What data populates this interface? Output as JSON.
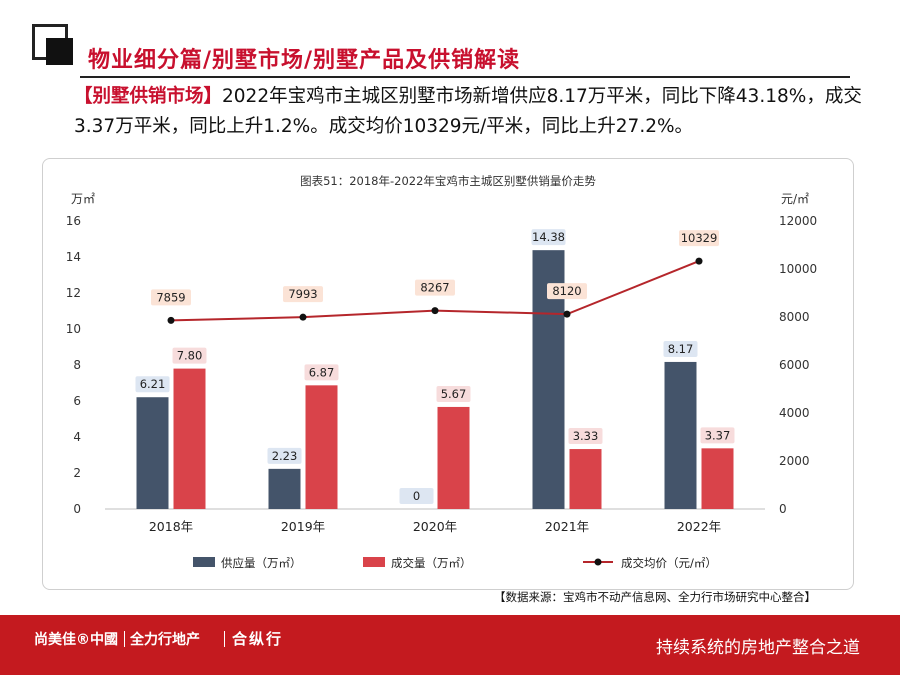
{
  "header": {
    "section_title": "物业细分篇/别墅市场/别墅产品及供销解读",
    "summary_tag": "【别墅供销市场】",
    "summary_text": "2022年宝鸡市主城区别墅市场新增供应8.17万平米，同比下降43.18%，成交3.37万平米，同比上升1.2%。成交均价10329元/平米，同比上升27.2%。"
  },
  "chart_data": {
    "type": "bar",
    "title": "图表51：2018年-2022年宝鸡市主城区别墅供销量价走势",
    "categories": [
      "2018年",
      "2019年",
      "2020年",
      "2021年",
      "2022年"
    ],
    "y_left_unit": "万㎡",
    "y_right_unit": "元/㎡",
    "ylim_left": [
      0,
      16
    ],
    "yticks_left": [
      0,
      2,
      4,
      6,
      8,
      10,
      12,
      14,
      16
    ],
    "ylim_right": [
      0,
      12000
    ],
    "yticks_right": [
      0,
      2000,
      4000,
      6000,
      8000,
      10000,
      12000
    ],
    "series": [
      {
        "name": "供应量（万㎡）",
        "kind": "bar",
        "axis": "left",
        "color": "#44546a",
        "values": [
          6.21,
          2.23,
          0,
          14.38,
          8.17
        ],
        "labels": [
          "6.21",
          "2.23",
          "0",
          "14.38",
          "8.17"
        ]
      },
      {
        "name": "成交量（万㎡）",
        "kind": "bar",
        "axis": "left",
        "color": "#d9434a",
        "values": [
          7.8,
          6.87,
          5.67,
          3.33,
          3.37
        ],
        "labels": [
          "7.80",
          "6.87",
          "5.67",
          "3.33",
          "3.37"
        ]
      },
      {
        "name": "成交均价（元/㎡）",
        "kind": "line",
        "axis": "right",
        "color": "#b5262b",
        "values": [
          7859,
          7993,
          8267,
          8120,
          10329
        ],
        "labels": [
          "7859",
          "7993",
          "8267",
          "8120",
          "10329"
        ]
      }
    ],
    "grid": false,
    "legend_position": "bottom"
  },
  "source_note": "【数据来源：宝鸡市不动产信息网、全力行市场研究中心整合】",
  "footer": {
    "brand_1": "尚美佳®中國",
    "brand_2": "全力行地产",
    "brand_3": "合纵行",
    "tagline": "持续系统的房地产整合之道"
  },
  "colors": {
    "accent": "#c8102e",
    "footer_bg": "#c41a1f",
    "supply_bar": "#44546a",
    "deal_bar": "#d9434a",
    "price_line": "#b5262b"
  }
}
